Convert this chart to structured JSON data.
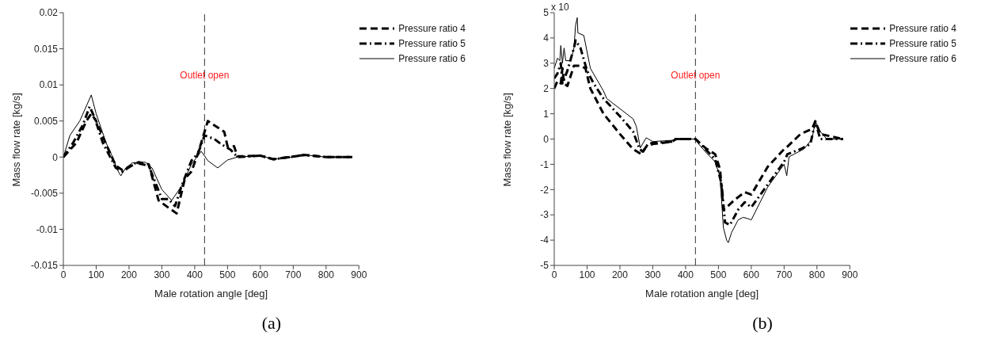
{
  "chart_data": [
    {
      "type": "line",
      "xlabel": "Male rotation angle [deg]",
      "ylabel": "Mass flow rate [kg/s]",
      "xlim": [
        0,
        900
      ],
      "xticks": [
        0,
        100,
        200,
        300,
        400,
        500,
        600,
        700,
        800,
        900
      ],
      "ylim": [
        -0.015,
        0.02
      ],
      "yticks": [
        -0.015,
        -0.01,
        -0.005,
        0,
        0.005,
        0.01,
        0.015,
        0.02
      ],
      "legend": "top right",
      "ref_lines": [
        {
          "axis": "x",
          "value": 430,
          "label": "Outlet open",
          "color": "#333333",
          "line_style": "dashed"
        }
      ],
      "annotations": [
        "(a)"
      ],
      "series": [
        {
          "name": "Pressure ratio 4",
          "color": "#000000",
          "line_style": "dashed",
          "x": [
            0,
            40,
            70,
            85,
            100,
            130,
            160,
            180,
            230,
            260,
            290,
            320,
            345,
            370,
            390,
            410,
            440,
            490,
            500,
            520,
            530,
            600,
            640,
            735,
            800,
            880
          ],
          "values": [
            0,
            0.002,
            0.005,
            0.006,
            0.005,
            0.0018,
            -0.0012,
            -0.0018,
            -0.0007,
            -0.001,
            -0.006,
            -0.007,
            -0.0078,
            -0.003,
            -0.002,
            0.0005,
            0.005,
            0.0035,
            0.0015,
            0.0015,
            0.0001,
            0.0002,
            -0.0003,
            0.0003,
            0,
            0
          ]
        },
        {
          "name": "Pressure ratio 5",
          "color": "#000000",
          "line_style": "dashdot",
          "x": [
            0,
            30,
            60,
            80,
            95,
            120,
            160,
            180,
            220,
            260,
            300,
            320,
            340,
            360,
            390,
            410,
            430,
            460,
            480,
            510,
            530,
            600,
            640,
            735,
            800,
            880
          ],
          "values": [
            0,
            0.002,
            0.0045,
            0.007,
            0.0055,
            0.002,
            -0.0015,
            -0.002,
            -0.0008,
            -0.0012,
            -0.0058,
            -0.0058,
            -0.0068,
            -0.004,
            -0.0005,
            0.0005,
            0.003,
            0.0025,
            0.0018,
            0.001,
            0,
            0.0002,
            -0.0003,
            0.0003,
            0,
            0
          ]
        },
        {
          "name": "Pressure ratio 6",
          "color": "#000000",
          "line_style": "solid",
          "x": [
            0,
            20,
            50,
            85,
            100,
            130,
            150,
            165,
            175,
            190,
            210,
            250,
            270,
            300,
            330,
            360,
            390,
            420,
            440,
            470,
            500,
            530,
            600,
            640,
            700,
            735,
            800,
            880
          ],
          "values": [
            0,
            0.003,
            0.005,
            0.0086,
            0.006,
            0.002,
            0,
            -0.0018,
            -0.0026,
            -0.0015,
            -0.0008,
            -0.0007,
            -0.0015,
            -0.0045,
            -0.006,
            -0.004,
            -0.001,
            0.0008,
            -0.0005,
            -0.0015,
            -0.0004,
            0,
            0.0002,
            -0.0003,
            0,
            0.0003,
            0,
            0
          ]
        }
      ]
    },
    {
      "type": "line",
      "xlabel": "Male rotation angle [deg]",
      "ylabel": "Mass flow rate [kg/s]",
      "xlim": [
        0,
        900
      ],
      "xticks": [
        0,
        100,
        200,
        300,
        400,
        500,
        600,
        700,
        800,
        900
      ],
      "ylim": [
        -5,
        5
      ],
      "yticks": [
        -5,
        -4,
        -3,
        -2,
        -1,
        0,
        1,
        2,
        3,
        4,
        5
      ],
      "legend": "top right",
      "ref_lines": [
        {
          "axis": "x",
          "value": 430,
          "label": "Outlet open",
          "color": "#333333",
          "line_style": "dashed"
        }
      ],
      "annotations": [
        "x 10",
        "(b)"
      ],
      "series": [
        {
          "name": "Pressure ratio 4",
          "color": "#000000",
          "line_style": "dashed",
          "x": [
            0,
            10,
            20,
            25,
            30,
            40,
            60,
            80,
            95,
            110,
            150,
            200,
            240,
            265,
            280,
            300,
            360,
            370,
            430,
            460,
            490,
            505,
            515,
            525,
            550,
            580,
            600,
            650,
            700,
            710,
            750,
            785,
            795,
            810,
            880
          ],
          "values": [
            2.0,
            2.3,
            2.2,
            2.8,
            2.2,
            2.1,
            2.9,
            2.9,
            2.8,
            2.0,
            1.0,
            0.2,
            -0.4,
            -0.6,
            -0.3,
            -0.2,
            -0.1,
            0,
            0,
            -0.35,
            -0.6,
            -1.2,
            -2.8,
            -2.7,
            -2.4,
            -2.1,
            -2.2,
            -1.1,
            -0.4,
            -0.3,
            0.2,
            0.4,
            0.7,
            0.2,
            0
          ]
        },
        {
          "name": "Pressure ratio 5",
          "color": "#000000",
          "line_style": "dashdot",
          "x": [
            0,
            10,
            20,
            25,
            40,
            60,
            65,
            80,
            100,
            120,
            150,
            200,
            240,
            260,
            270,
            285,
            300,
            360,
            370,
            430,
            460,
            490,
            510,
            520,
            535,
            560,
            580,
            600,
            650,
            700,
            710,
            750,
            780,
            795,
            810,
            880
          ],
          "values": [
            2.4,
            2.6,
            3.0,
            2.2,
            2.7,
            3.6,
            3.9,
            3.6,
            2.7,
            2.2,
            1.6,
            0.9,
            0.3,
            -0.4,
            -0.5,
            -0.2,
            -0.15,
            -0.1,
            0,
            0,
            -0.4,
            -0.8,
            -1.8,
            -3.3,
            -3.4,
            -2.8,
            -2.5,
            -2.7,
            -1.8,
            -0.9,
            -0.6,
            -0.4,
            -0.2,
            0.7,
            0,
            0
          ]
        },
        {
          "name": "Pressure ratio 6",
          "color": "#000000",
          "line_style": "solid",
          "x": [
            0,
            10,
            17,
            20,
            25,
            30,
            35,
            50,
            60,
            65,
            70,
            72,
            90,
            110,
            150,
            160,
            200,
            240,
            250,
            262,
            280,
            300,
            360,
            370,
            430,
            440,
            460,
            490,
            505,
            515,
            525,
            530,
            540,
            560,
            575,
            590,
            600,
            650,
            700,
            708,
            715,
            760,
            785,
            795,
            810,
            830,
            880
          ],
          "values": [
            2.8,
            3.2,
            3.1,
            3.7,
            3.0,
            3.6,
            3.1,
            3.1,
            3.6,
            4.5,
            4.8,
            4.2,
            4.1,
            2.8,
            1.9,
            1.6,
            1.2,
            0.8,
            0.5,
            -0.35,
            0.05,
            -0.1,
            -0.05,
            0,
            0,
            -0.2,
            -0.5,
            -0.9,
            -1.5,
            -3.5,
            -4.0,
            -4.1,
            -3.7,
            -3.2,
            -3.1,
            -3.15,
            -3.2,
            -1.9,
            -1.0,
            -1.45,
            -0.7,
            -0.4,
            0,
            0.7,
            0.3,
            0,
            0
          ]
        }
      ]
    }
  ]
}
